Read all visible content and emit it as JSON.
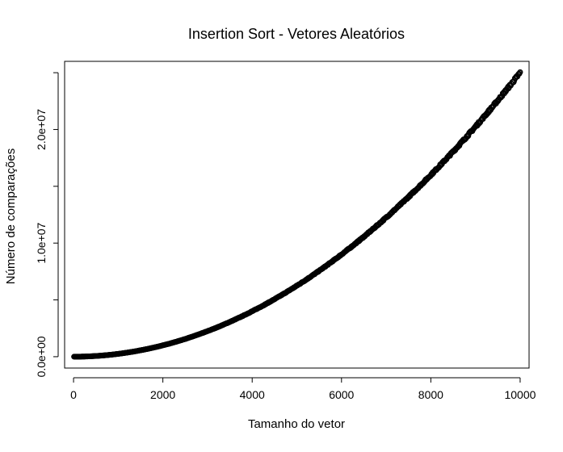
{
  "chart_data": {
    "type": "scatter",
    "title": "Insertion Sort - Vetores Aleatórios",
    "xlabel": "Tamanho do vetor",
    "ylabel": "Número de comparações",
    "xlim": [
      -200,
      10200
    ],
    "ylim": [
      -1000000,
      26000000
    ],
    "x_ticks": [
      0,
      2000,
      4000,
      6000,
      8000,
      10000
    ],
    "x_tick_labels": [
      "0",
      "2000",
      "4000",
      "6000",
      "8000",
      "10000"
    ],
    "y_ticks": [
      0,
      5000000,
      10000000,
      15000000,
      20000000,
      25000000
    ],
    "y_tick_labels": [
      "0.0e+00",
      "",
      "1.0e+07",
      "",
      "2.0e+07",
      ""
    ],
    "grid": false,
    "legend": "none",
    "marker": "open-circle",
    "series": [
      {
        "x_start": 10,
        "x_end": 10000,
        "x_step": 10,
        "model": "y = x^2 / 4",
        "x": [
          0,
          1000,
          2000,
          3000,
          4000,
          5000,
          6000,
          7000,
          8000,
          9000,
          10000
        ],
        "y": [
          0,
          250000,
          1000000,
          2250000,
          4000000,
          6250000,
          9000000,
          12250000,
          16000000,
          20250000,
          25000000
        ]
      }
    ]
  }
}
